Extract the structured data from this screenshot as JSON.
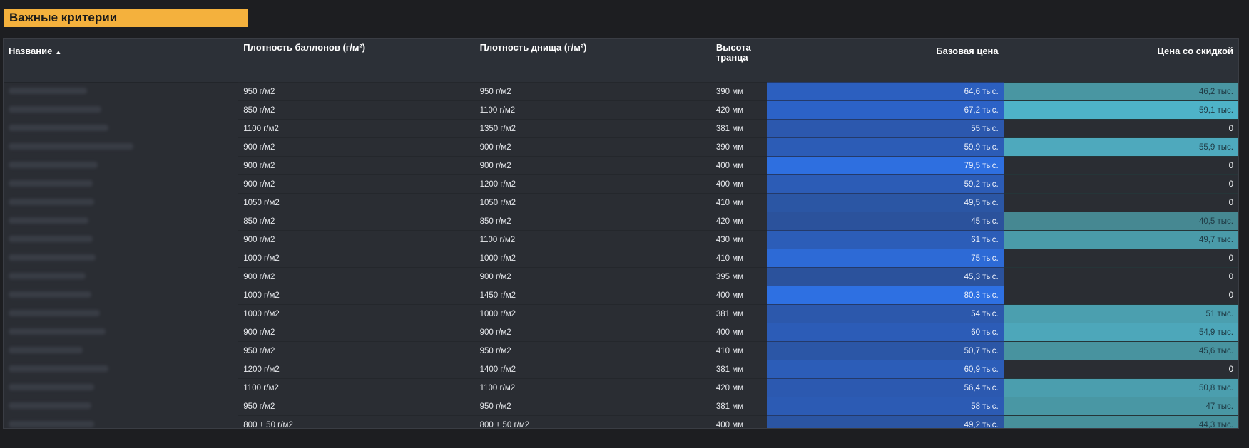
{
  "panel": {
    "title": "Важные критерии"
  },
  "table": {
    "headers": {
      "name": "Название",
      "balloon_density": "Плотность баллонов (г/м²)",
      "bottom_density": "Плотность днища (г/м²)",
      "transom_height": "Высота транца",
      "base_price": "Базовая цена",
      "discount_price": "Цена со скидкой"
    },
    "sort": {
      "column": "name",
      "direction": "ascending",
      "icon": "sort-ascending-icon"
    },
    "colors": {
      "base_price_cells": [
        "#2b5aa8",
        "#2e6fe0"
      ],
      "discount_price_cells": [
        "#3f8d97",
        "#52b5c9"
      ],
      "zero_cell": "#2a2d33"
    },
    "rows": [
      {
        "balloon": "950 г/м2",
        "bottom": "950 г/м2",
        "transom": "390 мм",
        "base": "64,6 тыс.",
        "base_color": "#2c5fbf",
        "disc": "46,2 тыс.",
        "disc_color": "#4996a2"
      },
      {
        "balloon": "850 г/м2",
        "bottom": "1100 г/м2",
        "transom": "420 мм",
        "base": "67,2 тыс.",
        "base_color": "#2c62c7",
        "disc": "59,1 тыс.",
        "disc_color": "#4eb3c8"
      },
      {
        "balloon": "1100 г/м2",
        "bottom": "1350 г/м2",
        "transom": "381 мм",
        "base": "55 тыс.",
        "base_color": "#2c58ae",
        "disc": "0",
        "disc_color": ""
      },
      {
        "balloon": "900 г/м2",
        "bottom": "900 г/м2",
        "transom": "390 мм",
        "base": "59,9 тыс.",
        "base_color": "#2c5cb6",
        "disc": "55,9 тыс.",
        "disc_color": "#4ea9bd"
      },
      {
        "balloon": "900 г/м2",
        "bottom": "900 г/м2",
        "transom": "400 мм",
        "base": "79,5 тыс.",
        "base_color": "#2e6fe0",
        "disc": "0",
        "disc_color": ""
      },
      {
        "balloon": "900 г/м2",
        "bottom": "1200 г/м2",
        "transom": "400 мм",
        "base": "59,2 тыс.",
        "base_color": "#2c5cb6",
        "disc": "0",
        "disc_color": ""
      },
      {
        "balloon": "1050 г/м2",
        "bottom": "1050 г/м2",
        "transom": "410 мм",
        "base": "49,5 тыс.",
        "base_color": "#2b56a4",
        "disc": "0",
        "disc_color": ""
      },
      {
        "balloon": "850 г/м2",
        "bottom": "850 г/м2",
        "transom": "420 мм",
        "base": "45 тыс.",
        "base_color": "#2b529c",
        "disc": "40,5 тыс.",
        "disc_color": "#468892"
      },
      {
        "balloon": "900 г/м2",
        "bottom": "1100 г/м2",
        "transom": "430 мм",
        "base": "61 тыс.",
        "base_color": "#2c5db8",
        "disc": "49,7 тыс.",
        "disc_color": "#4a9ba9"
      },
      {
        "balloon": "1000 г/м2",
        "bottom": "1000 г/м2",
        "transom": "410 мм",
        "base": "75 тыс.",
        "base_color": "#2d6ad6",
        "disc": "0",
        "disc_color": ""
      },
      {
        "balloon": "900 г/м2",
        "bottom": "900 г/м2",
        "transom": "395 мм",
        "base": "45,3 тыс.",
        "base_color": "#2b529c",
        "disc": "0",
        "disc_color": ""
      },
      {
        "balloon": "1000 г/м2",
        "bottom": "1450 г/м2",
        "transom": "400 мм",
        "base": "80,3 тыс.",
        "base_color": "#2e70e2",
        "disc": "0",
        "disc_color": ""
      },
      {
        "balloon": "1000 г/м2",
        "bottom": "1000 г/м2",
        "transom": "381 мм",
        "base": "54 тыс.",
        "base_color": "#2c58ac",
        "disc": "51 тыс.",
        "disc_color": "#4b9faf"
      },
      {
        "balloon": "900 г/м2",
        "bottom": "900 г/м2",
        "transom": "400 мм",
        "base": "60 тыс.",
        "base_color": "#2c5cb7",
        "disc": "54,9 тыс.",
        "disc_color": "#4da7ba"
      },
      {
        "balloon": "950 г/м2",
        "bottom": "950 г/м2",
        "transom": "410 мм",
        "base": "50,7 тыс.",
        "base_color": "#2b56a6",
        "disc": "45,6 тыс.",
        "disc_color": "#48939f"
      },
      {
        "balloon": "1200 г/м2",
        "bottom": "1400 г/м2",
        "transom": "381 мм",
        "base": "60,9 тыс.",
        "base_color": "#2c5db8",
        "disc": "0",
        "disc_color": ""
      },
      {
        "balloon": "1100 г/м2",
        "bottom": "1100 г/м2",
        "transom": "420 мм",
        "base": "56,4 тыс.",
        "base_color": "#2c59b0",
        "disc": "50,8 тыс.",
        "disc_color": "#4b9eae"
      },
      {
        "balloon": "950 г/м2",
        "bottom": "950 г/м2",
        "transom": "381 мм",
        "base": "58 тыс.",
        "base_color": "#2c5bb4",
        "disc": "47 тыс.",
        "disc_color": "#4997a4"
      },
      {
        "balloon": "800 ± 50 г/м2",
        "bottom": "800 ± 50 г/м2",
        "transom": "400 мм",
        "base": "49,2 тыс.",
        "base_color": "#2b55a3",
        "disc": "44,3 тыс.",
        "disc_color": "#47909b"
      }
    ]
  }
}
